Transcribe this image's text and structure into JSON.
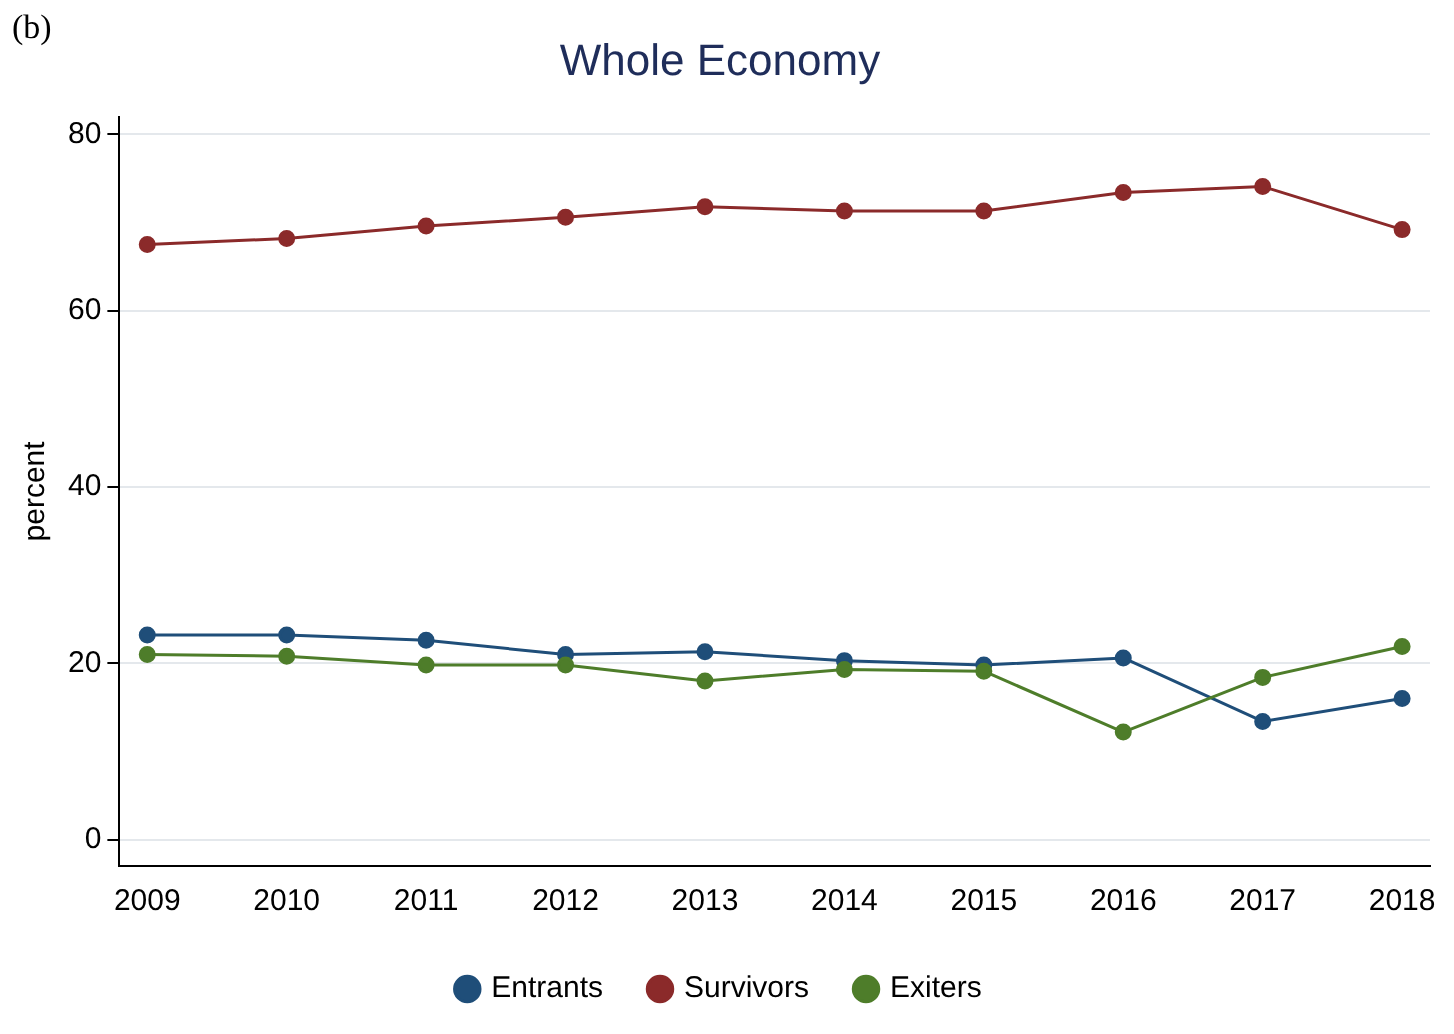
{
  "chart_data": {
    "type": "line",
    "title": "Whole Economy",
    "ylabel": "percent",
    "annotations": [
      "(b)"
    ],
    "x": [
      2009,
      2010,
      2011,
      2012,
      2013,
      2014,
      2015,
      2016,
      2017,
      2018
    ],
    "xlim": [
      2008.8,
      2018.2
    ],
    "xticks": [
      2009,
      2010,
      2011,
      2012,
      2013,
      2014,
      2015,
      2016,
      2017,
      2018
    ],
    "ylim": [
      -3,
      82
    ],
    "yticks": [
      0,
      20,
      40,
      60,
      80
    ],
    "grid": "y",
    "legend": "bottom",
    "marker": "circle",
    "line_style": "solid",
    "series": [
      {
        "name": "Entrants",
        "color": "#1f4e79",
        "values": [
          23.2,
          23.2,
          22.6,
          21.0,
          21.3,
          20.3,
          19.8,
          20.6,
          13.4,
          16.0
        ]
      },
      {
        "name": "Survivors",
        "color": "#8b2a2a",
        "values": [
          67.5,
          68.2,
          69.6,
          70.6,
          71.8,
          71.3,
          71.3,
          73.4,
          74.1,
          69.2
        ]
      },
      {
        "name": "Exiters",
        "color": "#4e7d2a",
        "values": [
          21.0,
          20.8,
          19.8,
          19.8,
          18.0,
          19.3,
          19.1,
          12.2,
          18.4,
          21.9
        ]
      }
    ]
  }
}
